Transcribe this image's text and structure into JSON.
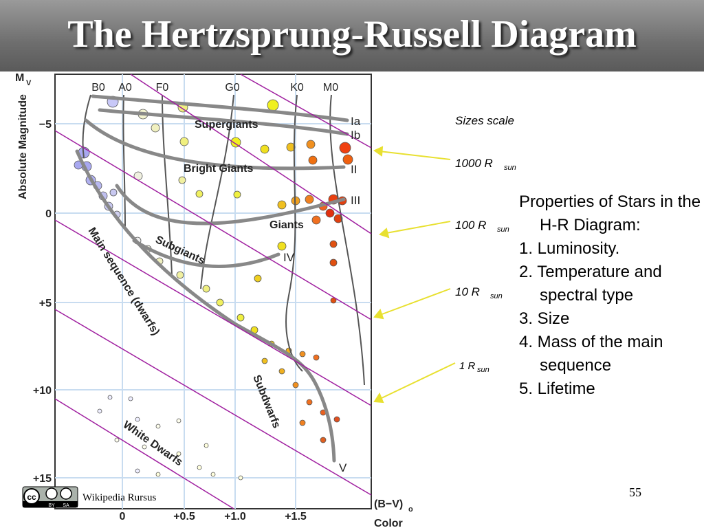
{
  "header": {
    "title": "The Hertzsprung-Russell Diagram"
  },
  "diagram": {
    "y_axis": {
      "label": "Absolute Magnitude",
      "symbol": "M",
      "symbol_sub": "V",
      "ticks": [
        "−5",
        "0",
        "+5",
        "+10",
        "+15"
      ]
    },
    "spectral_types": [
      "B0",
      "A0",
      "F0",
      "G0",
      "K0",
      "M0"
    ],
    "x_axis": {
      "ticks": [
        "0",
        "+0.5",
        "+1.0",
        "+1.5"
      ],
      "label": "(B−V)",
      "label_sub": "o",
      "caption": "Color"
    },
    "regions": [
      "Supergiants",
      "Bright Giants",
      "Giants",
      "Subgiants",
      "Main sequence (dwarfs)",
      "Subdwarfs",
      "White Dwarfs"
    ],
    "classes": [
      "Ia",
      "Ib",
      "II",
      "III",
      "IV",
      "V"
    ]
  },
  "sizes": {
    "title": "Sizes scale",
    "items": [
      {
        "label": "1000 R",
        "sub": "sun"
      },
      {
        "label": "100 R",
        "sub": "sun"
      },
      {
        "label": "10 R",
        "sub": "sun"
      },
      {
        "label": "1 R",
        "sub": "sun"
      }
    ]
  },
  "properties": {
    "heading": "Properties of Stars in the H-R Diagram:",
    "items": [
      "1. Luminosity.",
      "2. Temperature and spectral type",
      "3. Size",
      "4. Mass of the main sequence",
      "5. Lifetime"
    ]
  },
  "footer": {
    "license": [
      "BY",
      "SA"
    ],
    "credit": "Wikipedia Rursus",
    "page": "55"
  }
}
